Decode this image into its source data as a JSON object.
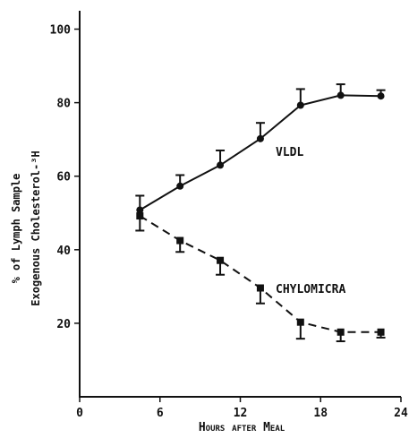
{
  "chart_data": {
    "type": "line",
    "title": "",
    "xlabel": "Hours after Meal",
    "ylabel_line1": "% of Lymph Sample",
    "ylabel_line2": "Exogenous Cholesterol-³H",
    "xlim": [
      0,
      24
    ],
    "ylim": [
      0,
      105
    ],
    "xticks": [
      0,
      6,
      12,
      18,
      24
    ],
    "yticks": [
      20,
      40,
      60,
      80,
      100
    ],
    "grid": false,
    "colors": {
      "ink": "#111111"
    },
    "series": [
      {
        "name": "VLDL",
        "marker": "circle",
        "line_style": "solid",
        "x": [
          4.5,
          7.5,
          10.5,
          13.5,
          16.5,
          19.5,
          22.5
        ],
        "y": [
          50.8,
          57.3,
          63.0,
          70.2,
          79.3,
          82.0,
          81.8
        ],
        "err_upper": [
          3.9,
          3.0,
          4.0,
          4.3,
          4.4,
          3.0,
          1.6
        ]
      },
      {
        "name": "CHYLOMICRA",
        "marker": "square",
        "line_style": "dashed",
        "x": [
          4.5,
          7.5,
          10.5,
          13.5,
          16.5,
          19.5,
          22.5
        ],
        "y": [
          49.2,
          42.5,
          37.1,
          29.6,
          20.3,
          17.6,
          17.6
        ],
        "err_lower": [
          4.0,
          3.1,
          3.9,
          4.2,
          4.5,
          2.5,
          1.5
        ]
      }
    ]
  }
}
